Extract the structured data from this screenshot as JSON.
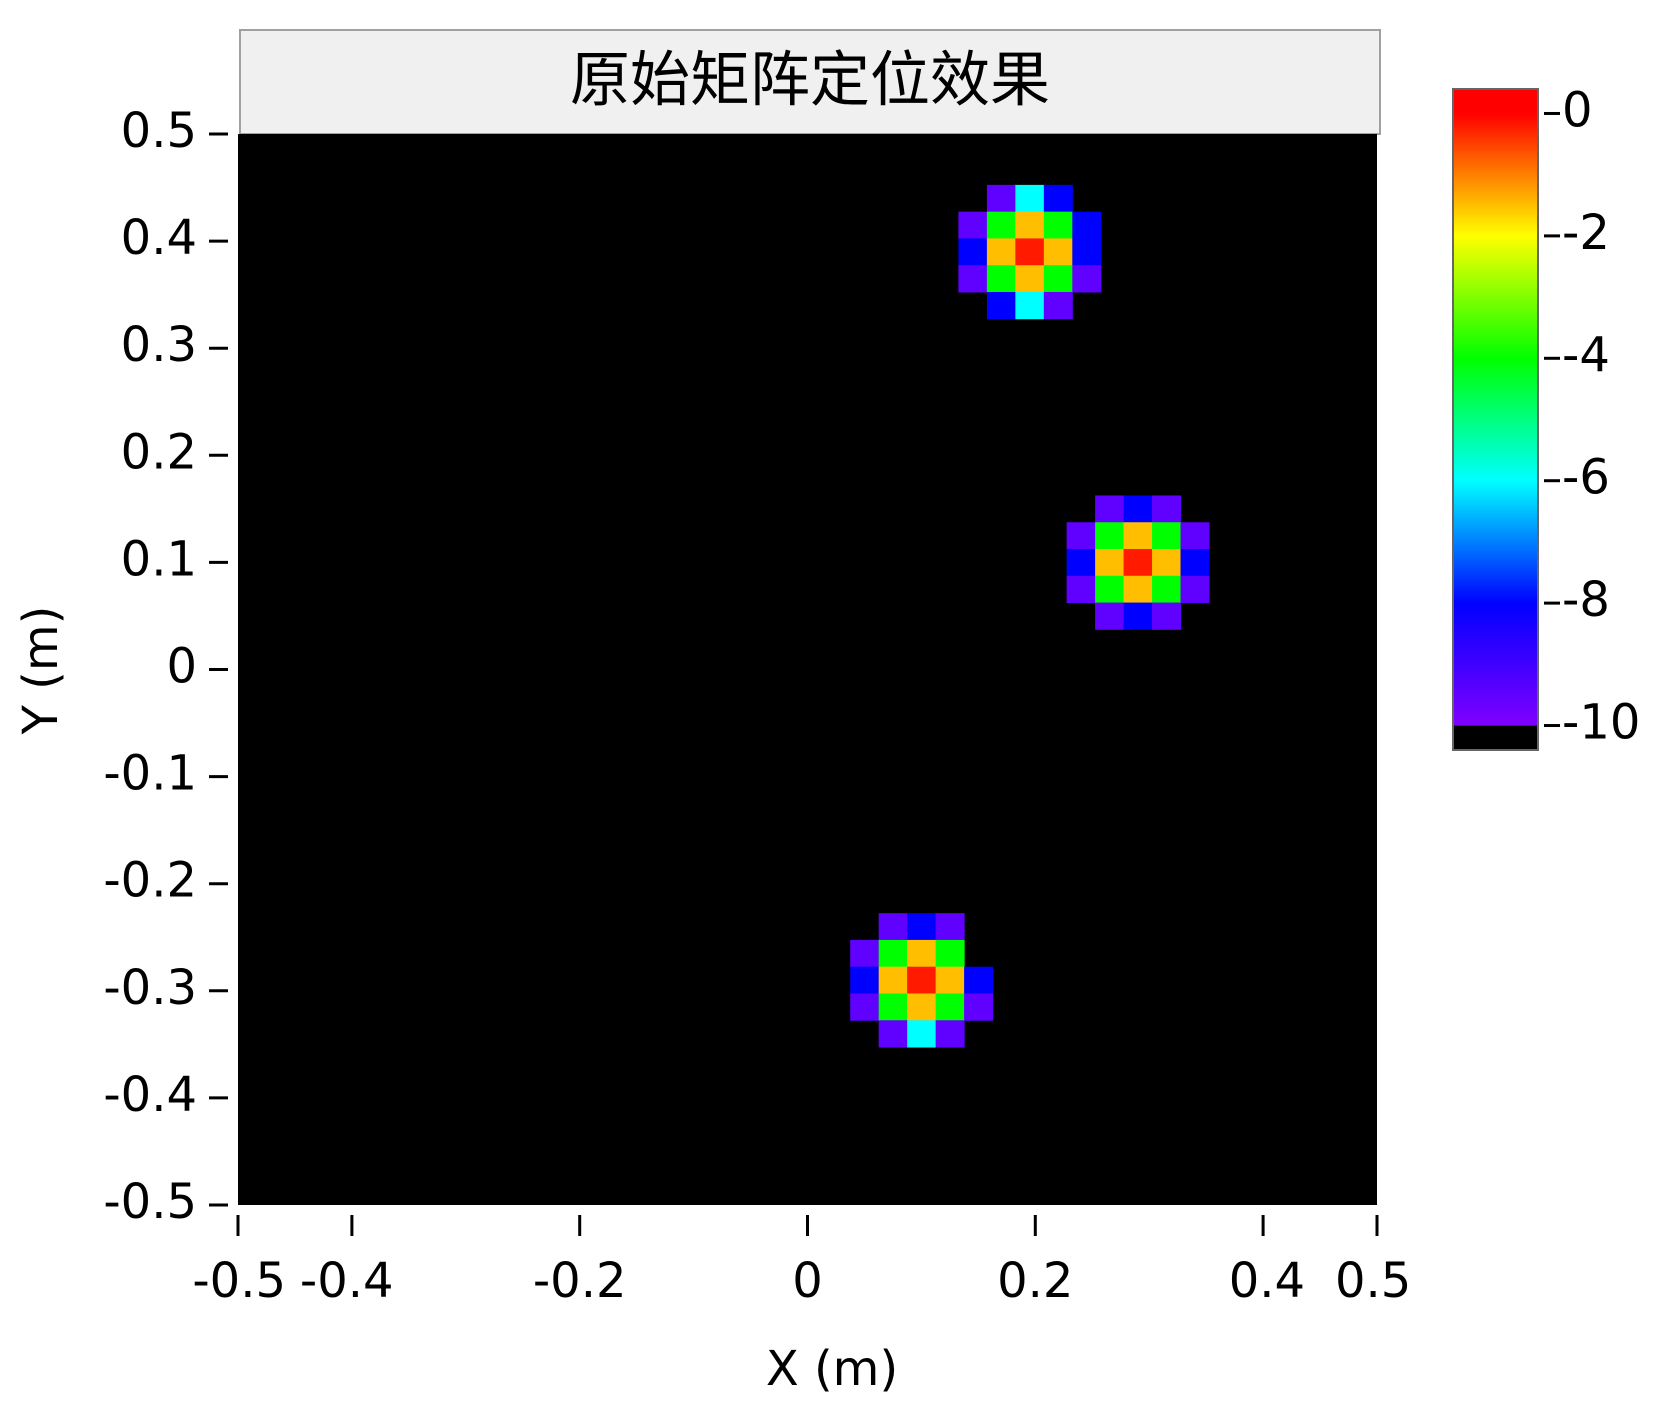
{
  "chart_data": {
    "type": "heatmap",
    "title": "原始矩阵定位效果",
    "x_label": "X (m)",
    "y_label": "Y (m)",
    "xlim": [
      -0.5,
      0.5
    ],
    "ylim": [
      -0.5,
      0.5
    ],
    "xticks": [
      -0.5,
      -0.4,
      -0.2,
      0,
      0.2,
      0.4,
      0.5
    ],
    "yticks": [
      0.5,
      0.4,
      0.3,
      0.2,
      0.1,
      0,
      -0.1,
      -0.2,
      -0.3,
      -0.4,
      -0.5
    ],
    "background_color": "#000000",
    "zlim": [
      -10.4,
      0.4
    ],
    "zticks": [
      0,
      -2,
      -4,
      -6,
      -8,
      -10
    ],
    "under_color": "#000000",
    "colorscale": [
      [
        -10,
        "#8000ff"
      ],
      [
        -8,
        "#0000ff"
      ],
      [
        -6,
        "#00ffff"
      ],
      [
        -4,
        "#00ff00"
      ],
      [
        -2,
        "#ffff00"
      ],
      [
        0,
        "#ff0000"
      ]
    ],
    "x": [
      0.17,
      0.195,
      0.22,
      0.145,
      0.17,
      0.195,
      0.22,
      0.245,
      0.145,
      0.17,
      0.195,
      0.22,
      0.245,
      0.145,
      0.17,
      0.195,
      0.22,
      0.245,
      0.17,
      0.195,
      0.22,
      0.265,
      0.29,
      0.315,
      0.24,
      0.265,
      0.29,
      0.315,
      0.34,
      0.24,
      0.265,
      0.29,
      0.315,
      0.34,
      0.24,
      0.265,
      0.29,
      0.315,
      0.34,
      0.265,
      0.29,
      0.315,
      0.075,
      0.1,
      0.125,
      0.05,
      0.075,
      0.1,
      0.125,
      0.05,
      0.075,
      0.1,
      0.125,
      0.15,
      0.05,
      0.075,
      0.1,
      0.125,
      0.15,
      0.075,
      0.1,
      0.125
    ],
    "y": [
      0.44,
      0.44,
      0.44,
      0.415,
      0.415,
      0.415,
      0.415,
      0.415,
      0.39,
      0.39,
      0.39,
      0.39,
      0.39,
      0.365,
      0.365,
      0.365,
      0.365,
      0.365,
      0.34,
      0.34,
      0.34,
      0.15,
      0.15,
      0.15,
      0.125,
      0.125,
      0.125,
      0.125,
      0.125,
      0.1,
      0.1,
      0.1,
      0.1,
      0.1,
      0.075,
      0.075,
      0.075,
      0.075,
      0.075,
      0.05,
      0.05,
      0.05,
      -0.24,
      -0.24,
      -0.24,
      -0.265,
      -0.265,
      -0.265,
      -0.265,
      -0.29,
      -0.29,
      -0.29,
      -0.29,
      -0.29,
      -0.315,
      -0.315,
      -0.315,
      -0.315,
      -0.315,
      -0.34,
      -0.34,
      -0.34
    ],
    "values": [
      -9.5,
      -6,
      -8,
      -9.5,
      -4,
      -1.5,
      -4,
      -8,
      -8,
      -1.5,
      -0.2,
      -1.5,
      -8,
      -9.5,
      -4,
      -1.5,
      -4,
      -9.5,
      -8,
      -6,
      -9.5,
      -9.5,
      -8,
      -9.5,
      -9.5,
      -4,
      -1.5,
      -4,
      -9.5,
      -8,
      -1.5,
      -0.2,
      -1.5,
      -8,
      -9.5,
      -4,
      -1.5,
      -4,
      -9.5,
      -9.5,
      -8,
      -9.5,
      -9.5,
      -8,
      -9.5,
      -9.5,
      -4,
      -1.5,
      -4,
      -8,
      -1.5,
      -0.2,
      -1.5,
      -8,
      -9.5,
      -4,
      -1.5,
      -4,
      -9.5,
      -9.5,
      -6,
      -9.5
    ]
  }
}
